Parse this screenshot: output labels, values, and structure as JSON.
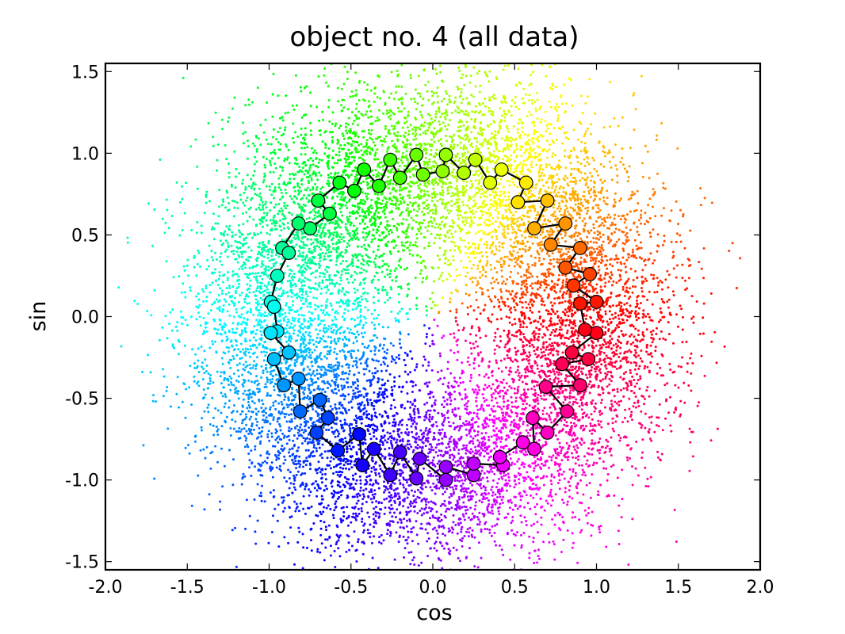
{
  "chart_data": {
    "type": "scatter",
    "title": "object no. 4 (all data)",
    "xlabel": "cos",
    "ylabel": "sin",
    "xlim": [
      -2.0,
      2.0
    ],
    "ylim": [
      -1.55,
      1.55
    ],
    "x_ticks": [
      "-2.0",
      "-1.5",
      "-1.0",
      "-0.5",
      "0.0",
      "0.5",
      "1.0",
      "1.5",
      "2.0"
    ],
    "y_ticks": [
      "1.5",
      "1.0",
      "0.5",
      "0.0",
      "-0.5",
      "-1.0",
      "-1.5"
    ],
    "grid": false,
    "legend": "none",
    "color_encoding": "hue follows angle atan2(sin, cos): red at 0, yellow at 90, green at 135, cyan at 180, blue at 250, magenta at 300",
    "scatter_cloud": {
      "point_count": 12000,
      "center": [
        0.0,
        0.0
      ],
      "radial_spread": 0.3,
      "marker": "small dot"
    },
    "circle_markers": {
      "edge_color": "#000000",
      "line_color": "#000000",
      "points": [
        [
          0.93,
          -0.08
        ],
        [
          1.0,
          -0.1
        ],
        [
          0.95,
          -0.26
        ],
        [
          0.85,
          -0.22
        ],
        [
          0.79,
          -0.29
        ],
        [
          0.9,
          -0.42
        ],
        [
          0.69,
          -0.43
        ],
        [
          0.82,
          -0.58
        ],
        [
          0.7,
          -0.71
        ],
        [
          0.61,
          -0.62
        ],
        [
          0.62,
          -0.81
        ],
        [
          0.55,
          -0.77
        ],
        [
          0.43,
          -0.91
        ],
        [
          0.41,
          -0.86
        ],
        [
          0.25,
          -0.97
        ],
        [
          0.25,
          -0.9
        ],
        [
          0.08,
          -1.0
        ],
        [
          0.08,
          -0.92
        ],
        [
          -0.08,
          -0.87
        ],
        [
          -0.1,
          -0.99
        ],
        [
          -0.2,
          -0.83
        ],
        [
          -0.26,
          -0.97
        ],
        [
          -0.36,
          -0.81
        ],
        [
          -0.43,
          -0.91
        ],
        [
          -0.45,
          -0.72
        ],
        [
          -0.58,
          -0.82
        ],
        [
          -0.64,
          -0.62
        ],
        [
          -0.71,
          -0.71
        ],
        [
          -0.69,
          -0.51
        ],
        [
          -0.81,
          -0.58
        ],
        [
          -0.82,
          -0.38
        ],
        [
          -0.91,
          -0.42
        ],
        [
          -0.88,
          -0.22
        ],
        [
          -0.97,
          -0.26
        ],
        [
          -0.95,
          -0.09
        ],
        [
          -0.99,
          -0.1
        ],
        [
          -0.97,
          0.06
        ],
        [
          -0.99,
          0.09
        ],
        [
          -0.95,
          0.25
        ],
        [
          -0.88,
          0.39
        ],
        [
          -0.92,
          0.42
        ],
        [
          -0.75,
          0.54
        ],
        [
          -0.82,
          0.57
        ],
        [
          -0.63,
          0.63
        ],
        [
          -0.7,
          0.71
        ],
        [
          -0.48,
          0.77
        ],
        [
          -0.57,
          0.82
        ],
        [
          -0.33,
          0.8
        ],
        [
          -0.42,
          0.9
        ],
        [
          -0.2,
          0.85
        ],
        [
          -0.26,
          0.96
        ],
        [
          -0.06,
          0.87
        ],
        [
          -0.1,
          0.99
        ],
        [
          0.06,
          0.89
        ],
        [
          0.08,
          0.99
        ],
        [
          0.19,
          0.88
        ],
        [
          0.26,
          0.96
        ],
        [
          0.35,
          0.82
        ],
        [
          0.42,
          0.9
        ],
        [
          0.52,
          0.7
        ],
        [
          0.57,
          0.82
        ],
        [
          0.62,
          0.54
        ],
        [
          0.7,
          0.71
        ],
        [
          0.72,
          0.44
        ],
        [
          0.81,
          0.57
        ],
        [
          0.81,
          0.3
        ],
        [
          0.9,
          0.42
        ],
        [
          0.86,
          0.19
        ],
        [
          0.96,
          0.26
        ],
        [
          0.9,
          0.08
        ],
        [
          1.0,
          0.09
        ]
      ]
    }
  }
}
